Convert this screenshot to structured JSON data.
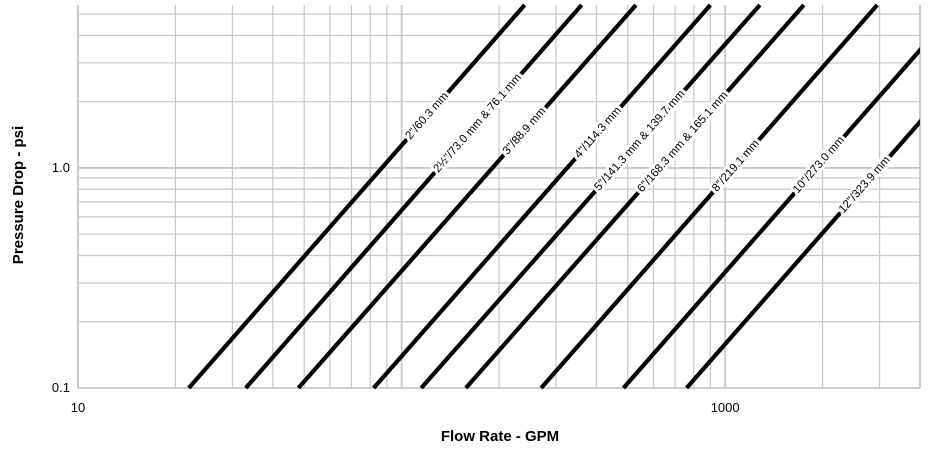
{
  "chart_data": {
    "type": "line",
    "xlabel": "Flow Rate - GPM",
    "ylabel": "Pressure Drop - psi",
    "xscale": "log",
    "yscale": "log",
    "xlim": [
      10,
      4000
    ],
    "ylim": [
      0.1,
      5.5
    ],
    "grid": true,
    "x_tick_labels": [
      {
        "value": 10,
        "label": "10"
      },
      {
        "value": 1000,
        "label": "1000"
      }
    ],
    "y_tick_labels": [
      {
        "value": 0.1,
        "label": "0.1"
      },
      {
        "value": 1.0,
        "label": "1.0"
      }
    ],
    "series": [
      {
        "name": "2\"/60.3 mm",
        "points": [
          [
            22,
            0.1
          ],
          [
            240,
            5.5
          ]
        ],
        "label_at": 120
      },
      {
        "name": "2½\"/73.0 mm & 76.1 mm",
        "points": [
          [
            33,
            0.1
          ],
          [
            360,
            5.5
          ]
        ],
        "label_at": 172
      },
      {
        "name": "3\"/88.9 mm",
        "points": [
          [
            48,
            0.1
          ],
          [
            530,
            5.5
          ]
        ],
        "label_at": 240
      },
      {
        "name": "4\"/114.3 mm",
        "points": [
          [
            82,
            0.1
          ],
          [
            900,
            5.5
          ]
        ],
        "label_at": 405
      },
      {
        "name": "5\"/141.3 mm & 139.7 mm",
        "points": [
          [
            115,
            0.1
          ],
          [
            1280,
            5.5
          ]
        ],
        "label_at": 545
      },
      {
        "name": "6\"/168.3 mm & 165.1 mm",
        "points": [
          [
            158,
            0.1
          ],
          [
            1750,
            5.5
          ]
        ],
        "label_at": 740
      },
      {
        "name": "8\"/219.1 mm",
        "points": [
          [
            270,
            0.1
          ],
          [
            2950,
            5.5
          ]
        ],
        "label_at": 1080
      },
      {
        "name": "10\"/273.0 mm",
        "points": [
          [
            485,
            0.1
          ],
          [
            5300,
            5.5
          ]
        ],
        "label_at": 1950
      },
      {
        "name": "12\"/323.9 mm",
        "points": [
          [
            760,
            0.1
          ],
          [
            8300,
            5.5
          ]
        ],
        "label_at": 2700
      }
    ],
    "colors": {
      "line": "#000000",
      "grid": "#c8c8c8"
    }
  }
}
